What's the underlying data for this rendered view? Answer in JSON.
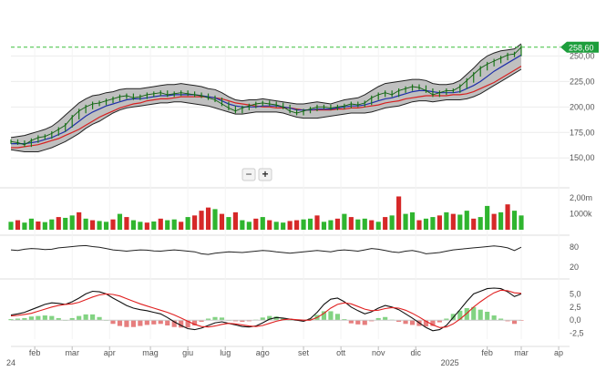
{
  "chart_data": {
    "type": "line",
    "price_panel": {
      "ylim": [
        135,
        262
      ],
      "y_ticks": [
        "150,00",
        "175,00",
        "200,00",
        "225,00",
        "250,00"
      ],
      "y_tick_values": [
        150,
        175,
        200,
        225,
        250
      ],
      "last_price_label": "258,60",
      "last_price": 258.6,
      "close": [
        166,
        165,
        163,
        167,
        170,
        171,
        174,
        178,
        182,
        190,
        196,
        200,
        203,
        204,
        206,
        208,
        210,
        211,
        209,
        210,
        212,
        213,
        214,
        212,
        213,
        214,
        213,
        212,
        211,
        209,
        207,
        203,
        199,
        196,
        199,
        201,
        203,
        204,
        203,
        202,
        200,
        196,
        194,
        196,
        198,
        200,
        200,
        199,
        200,
        201,
        203,
        202,
        204,
        209,
        212,
        214,
        212,
        216,
        218,
        220,
        219,
        216,
        212,
        214,
        216,
        216,
        220,
        226,
        232,
        238,
        242,
        245,
        248,
        251,
        252,
        258.6
      ],
      "sma_short": [
        164,
        164,
        164,
        165,
        166,
        168,
        170,
        173,
        176,
        181,
        186,
        191,
        195,
        198,
        201,
        203,
        205,
        207,
        208,
        208,
        209,
        210,
        211,
        211,
        212,
        212,
        212,
        212,
        211,
        210,
        209,
        206,
        203,
        201,
        200,
        200,
        200,
        201,
        201,
        201,
        200,
        199,
        197,
        197,
        197,
        198,
        198,
        198,
        199,
        200,
        201,
        201,
        202,
        204,
        206,
        208,
        209,
        211,
        213,
        215,
        216,
        216,
        215,
        214,
        214,
        214,
        215,
        218,
        221,
        225,
        230,
        235,
        239,
        243,
        247,
        251
      ],
      "sma_long": [
        160,
        160,
        161,
        162,
        163,
        165,
        167,
        169,
        172,
        175,
        178,
        182,
        186,
        190,
        193,
        196,
        199,
        201,
        203,
        204,
        206,
        207,
        208,
        208,
        209,
        210,
        210,
        210,
        210,
        210,
        209,
        208,
        206,
        204,
        203,
        202,
        201,
        200,
        200,
        199,
        199,
        199,
        198,
        197,
        197,
        197,
        197,
        197,
        198,
        198,
        199,
        199,
        200,
        201,
        202,
        204,
        205,
        206,
        208,
        209,
        210,
        211,
        211,
        211,
        211,
        212,
        212,
        213,
        215,
        218,
        221,
        224,
        228,
        232,
        236,
        240
      ],
      "bollinger_upper": [
        170,
        171,
        172,
        174,
        176,
        178,
        181,
        186,
        192,
        198,
        204,
        208,
        211,
        212,
        214,
        215,
        217,
        218,
        218,
        218,
        219,
        220,
        221,
        222,
        222,
        223,
        222,
        221,
        220,
        218,
        217,
        214,
        210,
        207,
        206,
        207,
        207,
        208,
        207,
        206,
        205,
        204,
        203,
        203,
        204,
        205,
        204,
        203,
        205,
        207,
        208,
        209,
        212,
        216,
        220,
        223,
        224,
        225,
        226,
        227,
        227,
        226,
        223,
        222,
        222,
        223,
        226,
        232,
        238,
        245,
        250,
        253,
        255,
        256,
        257,
        262
      ],
      "bollinger_lower": [
        158,
        157,
        156,
        156,
        156,
        158,
        160,
        163,
        166,
        170,
        174,
        179,
        183,
        186,
        190,
        194,
        197,
        199,
        200,
        201,
        202,
        203,
        204,
        204,
        205,
        205,
        204,
        203,
        202,
        201,
        199,
        197,
        195,
        193,
        193,
        194,
        195,
        195,
        195,
        195,
        194,
        192,
        190,
        189,
        189,
        189,
        190,
        191,
        192,
        193,
        194,
        194,
        194,
        195,
        197,
        199,
        200,
        201,
        203,
        205,
        206,
        206,
        205,
        206,
        207,
        207,
        207,
        208,
        210,
        213,
        217,
        221,
        225,
        229,
        233,
        237
      ]
    },
    "volume_panel": {
      "y_ticks": [
        "2,00m",
        "1000k"
      ],
      "y_tick_values": [
        2000,
        1000
      ],
      "unit": "k",
      "values": [
        500,
        600,
        450,
        700,
        520,
        480,
        650,
        800,
        750,
        900,
        1100,
        700,
        600,
        550,
        500,
        650,
        1000,
        800,
        600,
        500,
        450,
        520,
        700,
        600,
        650,
        500,
        800,
        900,
        1200,
        1400,
        1300,
        1000,
        800,
        1100,
        600,
        500,
        700,
        800,
        600,
        500,
        450,
        550,
        600,
        650,
        700,
        900,
        500,
        600,
        700,
        1000,
        800,
        650,
        700,
        600,
        500,
        800,
        900,
        2100,
        1000,
        1100,
        600,
        700,
        800,
        900,
        1100,
        1000,
        950,
        1200,
        700,
        800,
        1500,
        1000,
        1100,
        1600,
        1200,
        900
      ],
      "up": [
        1,
        0,
        1,
        1,
        0,
        1,
        1,
        0,
        1,
        1,
        0,
        1,
        0,
        1,
        1,
        0,
        1,
        0,
        1,
        1,
        0,
        1,
        0,
        1,
        1,
        0,
        1,
        0,
        0,
        0,
        1,
        0,
        1,
        0,
        1,
        1,
        0,
        1,
        0,
        1,
        1,
        0,
        0,
        1,
        1,
        0,
        1,
        1,
        0,
        1,
        0,
        1,
        1,
        0,
        1,
        0,
        1,
        0,
        1,
        1,
        0,
        1,
        1,
        0,
        1,
        0,
        1,
        1,
        0,
        1,
        1,
        0,
        1,
        0,
        1,
        1
      ]
    },
    "oscillator_panel": {
      "y_ticks": [
        "80",
        "20"
      ],
      "y_tick_values": [
        80,
        20
      ],
      "ylim": [
        0,
        100
      ],
      "values": [
        72,
        70,
        74,
        76,
        75,
        73,
        74,
        78,
        80,
        82,
        84,
        85,
        82,
        80,
        76,
        72,
        70,
        68,
        70,
        72,
        71,
        69,
        68,
        70,
        72,
        70,
        68,
        66,
        60,
        58,
        62,
        64,
        66,
        65,
        64,
        66,
        68,
        70,
        69,
        66,
        64,
        62,
        64,
        66,
        68,
        70,
        68,
        66,
        70,
        72,
        70,
        68,
        72,
        76,
        74,
        70,
        66,
        64,
        68,
        70,
        66,
        60,
        62,
        64,
        68,
        72,
        74,
        76,
        78,
        80,
        82,
        84,
        82,
        78,
        70,
        80
      ]
    },
    "macd_panel": {
      "y_ticks": [
        "5,0",
        "2,5",
        "0,0",
        "-2,5"
      ],
      "y_tick_values": [
        5,
        2.5,
        0,
        -2.5
      ],
      "ylim": [
        -3.6,
        6.8
      ],
      "macd": [
        1.0,
        1.2,
        1.5,
        2.0,
        2.5,
        3.0,
        3.3,
        3.2,
        3.0,
        3.5,
        4.2,
        5.0,
        5.5,
        5.4,
        5.0,
        4.2,
        3.5,
        2.8,
        2.3,
        2.0,
        1.8,
        1.5,
        1.2,
        0.5,
        -0.3,
        -1.0,
        -1.6,
        -1.8,
        -1.5,
        -1.0,
        -0.5,
        -0.3,
        -0.6,
        -0.9,
        -1.2,
        -1.3,
        -1.1,
        -0.5,
        0.2,
        0.5,
        0.4,
        0.2,
        0.0,
        -0.2,
        0.3,
        1.5,
        3.0,
        4.0,
        4.2,
        3.5,
        2.5,
        1.8,
        1.2,
        1.6,
        2.3,
        2.8,
        2.5,
        2.0,
        1.2,
        0.4,
        -0.5,
        -1.4,
        -2.0,
        -1.8,
        -1.0,
        0.5,
        2.0,
        3.6,
        5.0,
        5.5,
        6.0,
        6.1,
        6.0,
        5.4,
        4.5,
        5.0
      ],
      "signal": [
        0.8,
        0.9,
        1.1,
        1.3,
        1.7,
        2.1,
        2.5,
        2.8,
        3.0,
        3.1,
        3.4,
        3.9,
        4.4,
        4.8,
        5.0,
        4.9,
        4.6,
        4.1,
        3.6,
        3.1,
        2.7,
        2.3,
        1.9,
        1.5,
        1.0,
        0.4,
        -0.2,
        -0.8,
        -1.2,
        -1.3,
        -1.1,
        -0.8,
        -0.6,
        -0.7,
        -0.9,
        -1.1,
        -1.2,
        -1.0,
        -0.6,
        -0.2,
        0.1,
        0.2,
        0.1,
        0.0,
        0.0,
        0.5,
        1.3,
        2.3,
        3.0,
        3.3,
        3.1,
        2.6,
        2.1,
        1.8,
        1.9,
        2.2,
        2.4,
        2.3,
        1.9,
        1.3,
        0.6,
        -0.2,
        -0.9,
        -1.4,
        -1.3,
        -0.7,
        0.2,
        1.3,
        2.5,
        3.5,
        4.4,
        5.2,
        5.7,
        5.6,
        5.2,
        5.1
      ]
    },
    "x_axis": {
      "labels": [
        "feb",
        "mar",
        "apr",
        "mag",
        "giu",
        "lug",
        "ago",
        "set",
        "ott",
        "nov",
        "dic",
        "feb",
        "mar",
        "ap"
      ],
      "positions": [
        3.5,
        9,
        14.5,
        20.5,
        26,
        31.5,
        37,
        43,
        48.5,
        54,
        59.5,
        70,
        75,
        80.5
      ],
      "year_labels": [
        {
          "text": "24",
          "pos": 0
        },
        {
          "text": "2025",
          "pos": 64.5
        }
      ]
    },
    "colors": {
      "price": "#1a7a1a",
      "sma_short": "#1f2fa8",
      "sma_long": "#d62020",
      "bollinger_fill": "#b5b5b5",
      "bollinger_edge": "#222222",
      "volume_up": "#2fb52f",
      "volume_down": "#d62828",
      "oscillator": "#222222",
      "macd": "#111111",
      "signal": "#e02020",
      "last_price_badge": "#1d9e3c",
      "guide_line": "#3cbf3c"
    }
  },
  "controls": {
    "zoom_out_label": "−",
    "zoom_in_label": "+"
  }
}
